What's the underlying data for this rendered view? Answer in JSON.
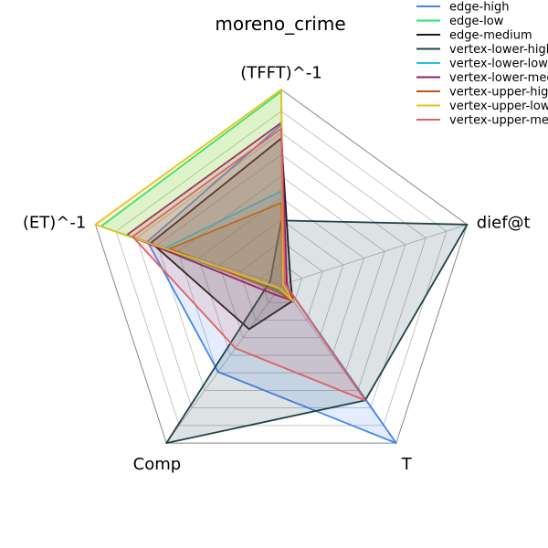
{
  "chart_data": {
    "type": "radar",
    "title": "moreno_crime",
    "axes": [
      "(TFFT)^-1",
      "dief@t",
      "T",
      "Comp",
      "(ET)^-1"
    ],
    "rmax": 1.0,
    "grid_levels": 9,
    "legend_position": "top-right",
    "series": [
      {
        "name": "edge-high",
        "color": "#4285f4",
        "values": [
          0.82,
          0.02,
          1.0,
          0.55,
          0.72
        ]
      },
      {
        "name": "edge-low",
        "color": "#1ee870",
        "values": [
          0.99,
          0.01,
          0.1,
          0.03,
          0.97
        ]
      },
      {
        "name": "edge-medium",
        "color": "#1a1a1a",
        "values": [
          0.75,
          0.05,
          0.1,
          0.28,
          0.7
        ]
      },
      {
        "name": "vertex-lower-high",
        "color": "#1e4248",
        "values": [
          0.33,
          1.0,
          0.73,
          1.0,
          0.06
        ]
      },
      {
        "name": "vertex-lower-low",
        "color": "#1ec4e0",
        "values": [
          0.48,
          0.01,
          0.1,
          0.04,
          0.62
        ]
      },
      {
        "name": "vertex-lower-medium",
        "color": "#8b1f6b",
        "values": [
          0.83,
          0.03,
          0.1,
          0.06,
          0.83
        ]
      },
      {
        "name": "vertex-upper-high",
        "color": "#b85a18",
        "values": [
          0.42,
          0.01,
          0.1,
          0.04,
          0.6
        ]
      },
      {
        "name": "vertex-upper-low",
        "color": "#e8c31e",
        "values": [
          1.0,
          0.01,
          0.1,
          0.02,
          1.0
        ]
      },
      {
        "name": "vertex-upper-medium",
        "color": "#e06060",
        "values": [
          0.8,
          0.02,
          0.73,
          0.4,
          0.8
        ]
      }
    ]
  }
}
